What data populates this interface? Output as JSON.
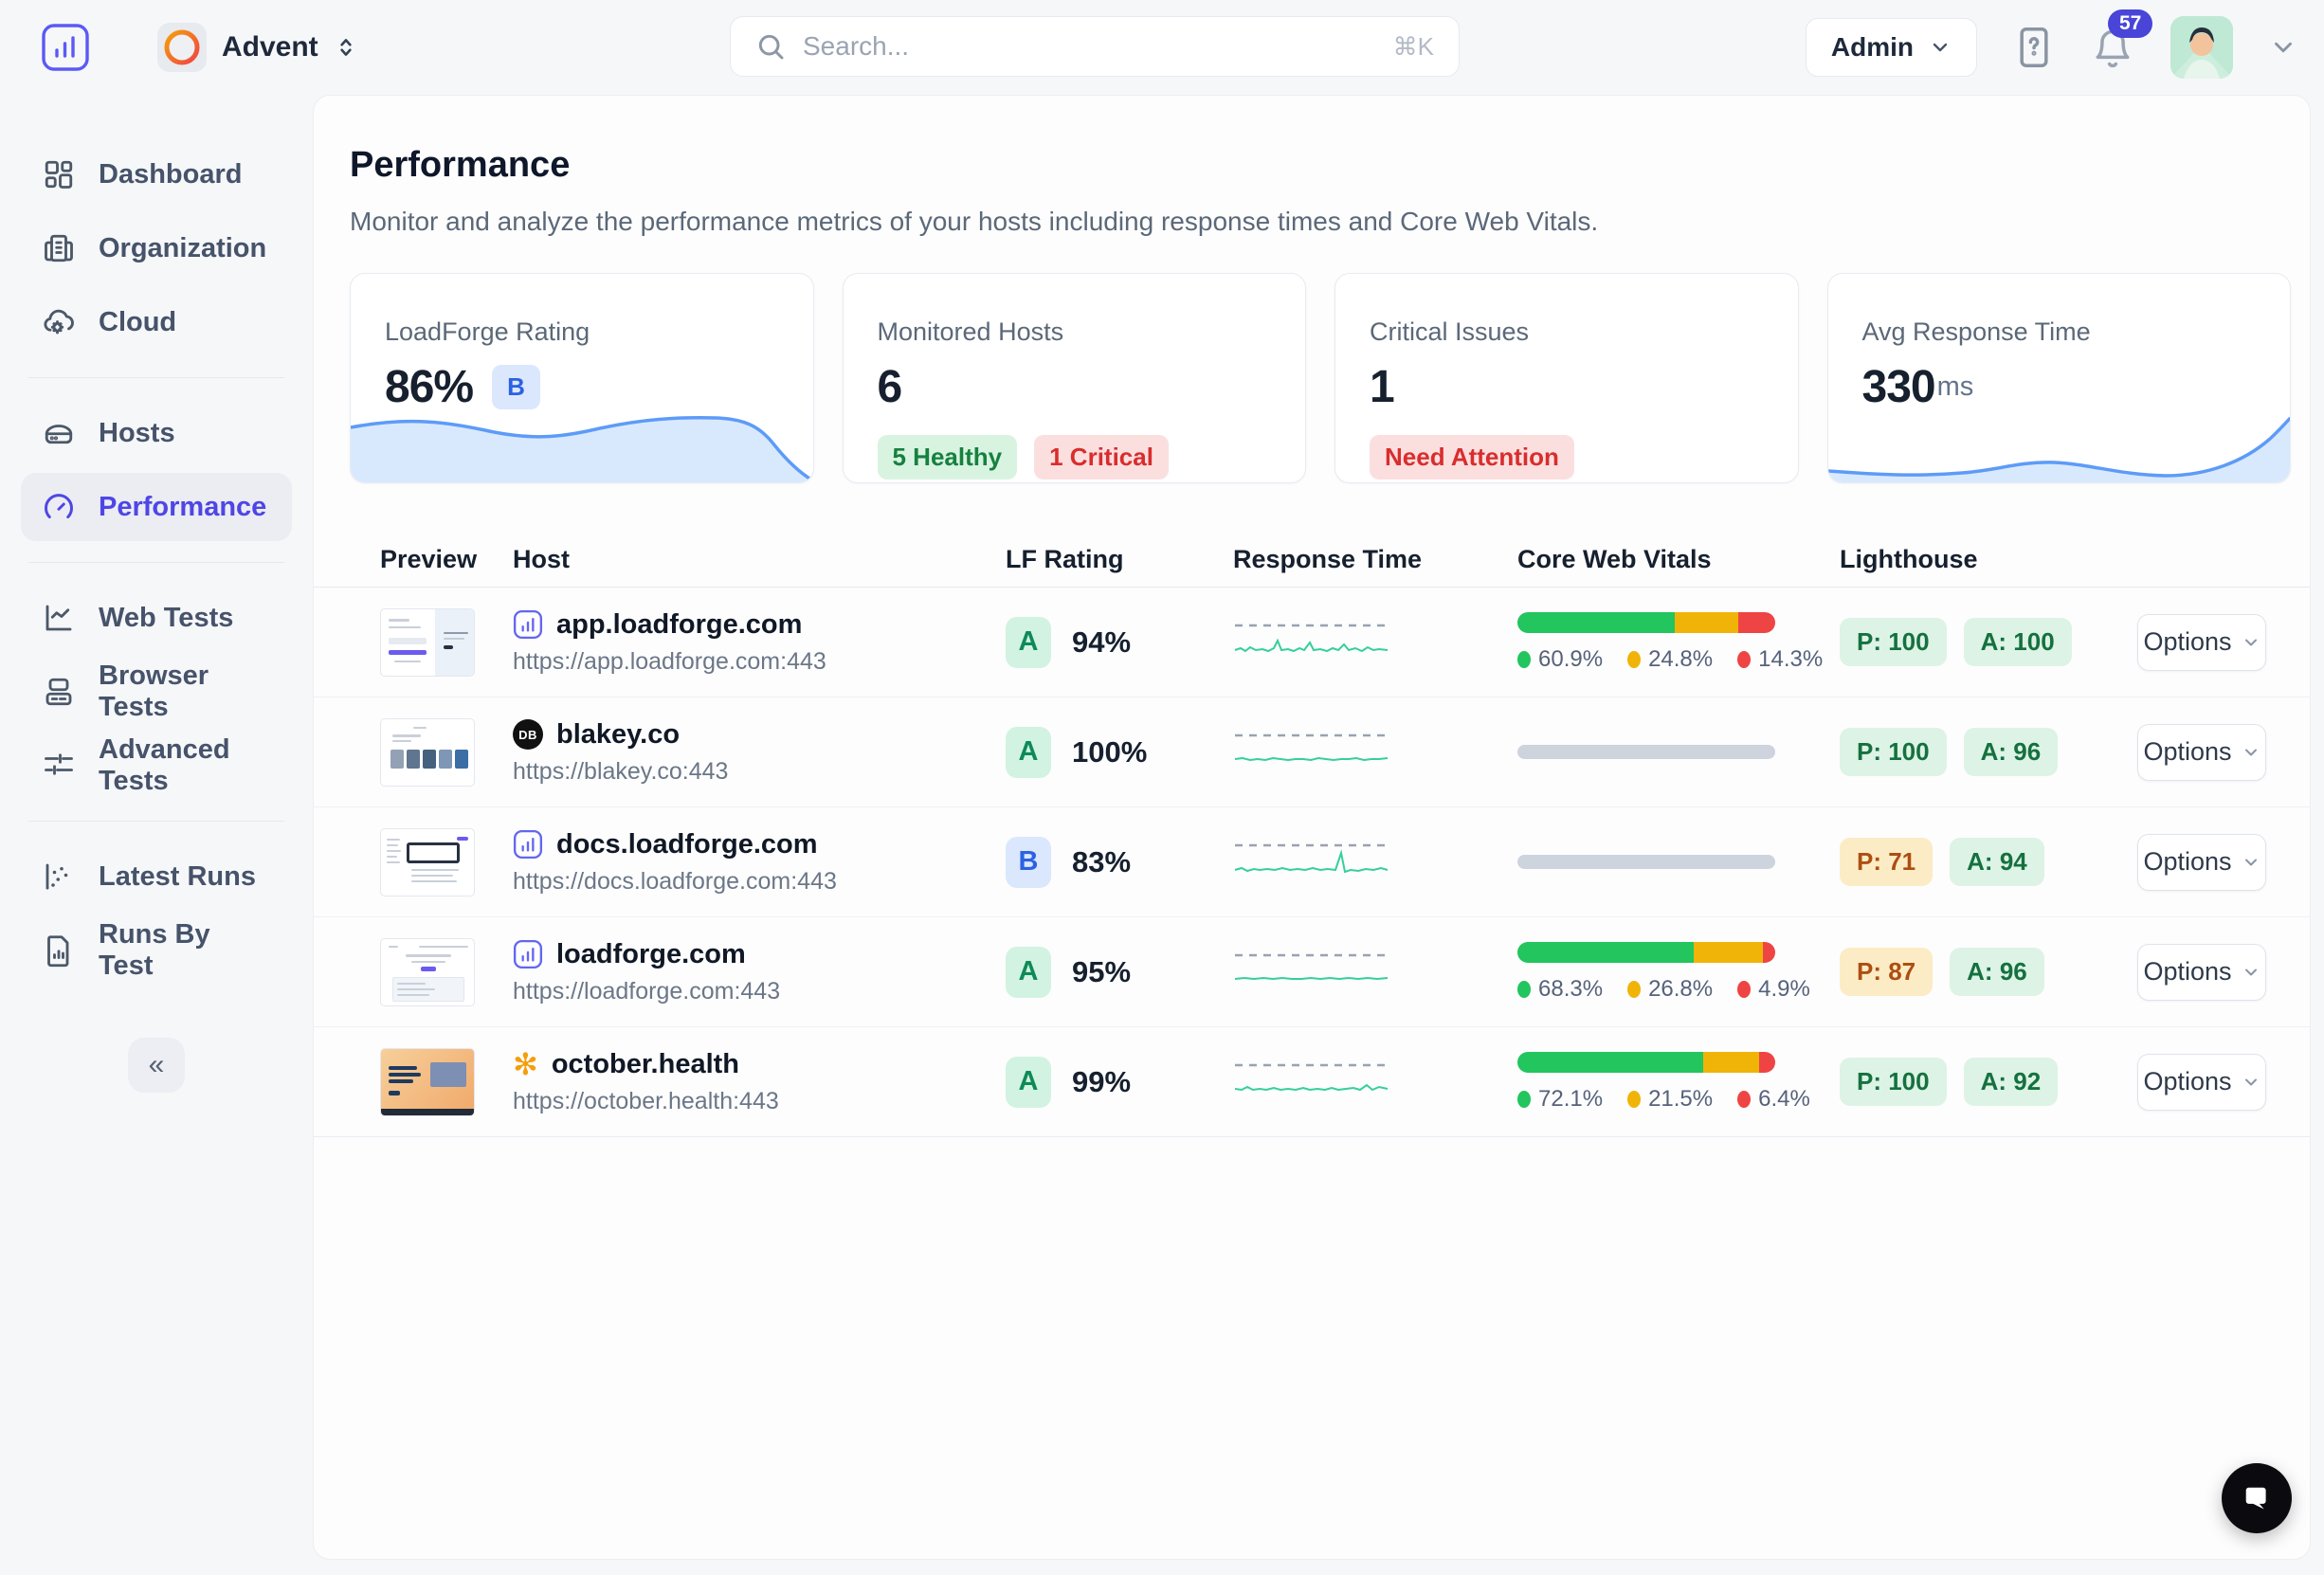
{
  "topbar": {
    "workspace_name": "Advent",
    "search": {
      "placeholder": "Search...",
      "shortcut": "⌘K"
    },
    "admin_label": "Admin",
    "notification_count": "57"
  },
  "sidebar": {
    "collapse_icon": "«",
    "items": [
      {
        "label": "Dashboard",
        "icon": "grid-icon"
      },
      {
        "label": "Organization",
        "icon": "building-icon"
      },
      {
        "label": "Cloud",
        "icon": "cloud-gear-icon"
      },
      {
        "label": "Hosts",
        "icon": "server-icon"
      },
      {
        "label": "Performance",
        "icon": "gauge-icon"
      },
      {
        "label": "Web Tests",
        "icon": "chart-line-icon"
      },
      {
        "label": "Browser Tests",
        "icon": "browser-icon"
      },
      {
        "label": "Advanced Tests",
        "icon": "sliders-icon"
      },
      {
        "label": "Latest Runs",
        "icon": "scatter-icon"
      },
      {
        "label": "Runs By Test",
        "icon": "file-chart-icon"
      }
    ]
  },
  "page": {
    "title": "Performance",
    "subtitle": "Monitor and analyze the performance metrics of your hosts including response times and Core Web Vitals."
  },
  "cards": {
    "rating": {
      "label": "LoadForge Rating",
      "value": "86%",
      "grade": "B"
    },
    "hosts": {
      "label": "Monitored Hosts",
      "value": "6",
      "healthy": "5 Healthy",
      "critical": "1 Critical"
    },
    "critical": {
      "label": "Critical Issues",
      "value": "1",
      "badge": "Need Attention"
    },
    "response": {
      "label": "Avg Response Time",
      "value": "330",
      "unit": "ms"
    }
  },
  "colors": {
    "accent": "#4f46e5",
    "cwv_good": "#22c55e",
    "cwv_needs_improvement": "#f0b409",
    "cwv_poor": "#ef4444",
    "sparkline": "#36cf9a",
    "area_chart": "#5d9bf7"
  },
  "table": {
    "columns": [
      "Preview",
      "Host",
      "LF Rating",
      "Response Time",
      "Core Web Vitals",
      "Lighthouse"
    ],
    "options_label": "Options",
    "rows": [
      {
        "host": "app.loadforge.com",
        "url": "https://app.loadforge.com:443",
        "grade": "A",
        "score": "94%",
        "cwv": {
          "good": "60.9%",
          "needs_improvement": "24.8%",
          "poor": "14.3%"
        },
        "performance": "P: 100",
        "accessibility": "A: 100"
      },
      {
        "host": "blakey.co",
        "url": "https://blakey.co:443",
        "grade": "A",
        "score": "100%",
        "favicon_text": "DB",
        "performance": "P: 100",
        "accessibility": "A: 96"
      },
      {
        "host": "docs.loadforge.com",
        "url": "https://docs.loadforge.com:443",
        "grade": "B",
        "score": "83%",
        "performance": "P: 71",
        "accessibility": "A: 94"
      },
      {
        "host": "loadforge.com",
        "url": "https://loadforge.com:443",
        "grade": "A",
        "score": "95%",
        "cwv": {
          "good": "68.3%",
          "needs_improvement": "26.8%",
          "poor": "4.9%"
        },
        "performance": "P: 87",
        "accessibility": "A: 96"
      },
      {
        "host": "october.health",
        "url": "https://october.health:443",
        "grade": "A",
        "score": "99%",
        "cwv": {
          "good": "72.1%",
          "needs_improvement": "21.5%",
          "poor": "6.4%"
        },
        "performance": "P: 100",
        "accessibility": "A: 92"
      }
    ]
  }
}
